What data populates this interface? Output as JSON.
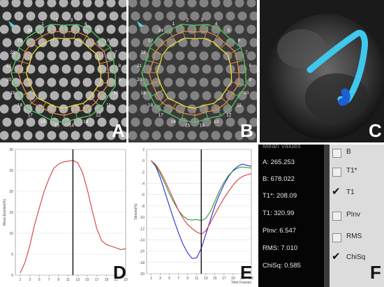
{
  "panels": {
    "A": "A",
    "B": "B",
    "C": "C",
    "D": "D",
    "E": "E",
    "F": "F"
  },
  "segments": [
    "1",
    "2",
    "3",
    "4",
    "5",
    "6",
    "7",
    "8",
    "9",
    "10",
    "11",
    "12",
    "13",
    "14",
    "15",
    "16",
    "17",
    "18",
    "19",
    "20",
    "21",
    "22",
    "23",
    "24"
  ],
  "colors": {
    "ring_outer": "#5ec35e",
    "ring_mid": "#e08a4a",
    "ring_inner": "#f2e23a",
    "marker": "#5ad1e8",
    "strain_blue": "#2b2bd6",
    "strain_green": "#2e9a2e",
    "strain_red": "#d43c3c",
    "mean_line": "#d43c3c"
  },
  "chart_data": [
    {
      "type": "line",
      "ylabel": "Mean Epsilon(%)",
      "xlim": [
        0,
        23
      ],
      "ylim": [
        0,
        30
      ],
      "y_ticks": [
        "0",
        "5",
        "10",
        "15",
        "20",
        "25",
        "30"
      ],
      "x_ticks": [
        "1",
        "3",
        "5",
        "7",
        "9",
        "11",
        "13",
        "15",
        "17",
        "19",
        "21",
        "23"
      ],
      "marker_x": 12,
      "series": [
        {
          "values": [
            [
              1,
              0.5
            ],
            [
              2,
              3
            ],
            [
              3,
              7
            ],
            [
              4,
              12
            ],
            [
              5,
              16
            ],
            [
              6,
              20
            ],
            [
              7,
              23
            ],
            [
              8,
              25.5
            ],
            [
              9,
              26.5
            ],
            [
              10,
              27
            ],
            [
              11,
              27.2
            ],
            [
              12,
              27.4
            ],
            [
              13,
              26.8
            ],
            [
              14,
              24.5
            ],
            [
              15,
              20.5
            ],
            [
              16,
              15.5
            ],
            [
              17,
              11
            ],
            [
              18,
              8.2
            ],
            [
              19,
              7.3
            ],
            [
              20,
              6.9
            ],
            [
              21,
              6.5
            ],
            [
              22,
              6.1
            ],
            [
              23,
              6.3
            ]
          ]
        }
      ]
    },
    {
      "type": "line",
      "ylabel": "Strains(%)",
      "xlabel": "Time Frames",
      "xlim": [
        0,
        23
      ],
      "ylim": [
        -20,
        2
      ],
      "y_ticks": [
        "2",
        "0",
        "-2",
        "-4",
        "-6",
        "-8",
        "-10",
        "-12",
        "-14",
        "-16",
        "-18",
        "-20"
      ],
      "x_ticks": [
        "1",
        "3",
        "5",
        "7",
        "9",
        "11",
        "13",
        "15",
        "17",
        "19",
        "21",
        "23"
      ],
      "marker_x": 12,
      "series": [
        {
          "values": [
            [
              1,
              0
            ],
            [
              2,
              -1
            ],
            [
              3,
              -3
            ],
            [
              4,
              -5.5
            ],
            [
              5,
              -8
            ],
            [
              6,
              -10.5
            ],
            [
              7,
              -12.8
            ],
            [
              8,
              -14.8
            ],
            [
              9,
              -16.3
            ],
            [
              10,
              -17.3
            ],
            [
              11,
              -17.2
            ],
            [
              12,
              -15.5
            ],
            [
              13,
              -13
            ],
            [
              14,
              -10.5
            ],
            [
              15,
              -8
            ],
            [
              16,
              -6
            ],
            [
              17,
              -4.2
            ],
            [
              18,
              -2.8
            ],
            [
              19,
              -1.7
            ],
            [
              20,
              -1
            ],
            [
              21,
              -0.6
            ],
            [
              22,
              -0.8
            ],
            [
              23,
              -1
            ]
          ]
        },
        {
          "values": [
            [
              1,
              0
            ],
            [
              2,
              -0.8
            ],
            [
              3,
              -2.3
            ],
            [
              4,
              -4
            ],
            [
              5,
              -5.8
            ],
            [
              6,
              -7.4
            ],
            [
              7,
              -8.8
            ],
            [
              8,
              -9.8
            ],
            [
              9,
              -10.4
            ],
            [
              10,
              -10.5
            ],
            [
              11,
              -10.4
            ],
            [
              12,
              -10.6
            ],
            [
              13,
              -10.2
            ],
            [
              14,
              -9
            ],
            [
              15,
              -7.2
            ],
            [
              16,
              -5.3
            ],
            [
              17,
              -3.8
            ],
            [
              18,
              -2.6
            ],
            [
              19,
              -1.8
            ],
            [
              20,
              -1.3
            ],
            [
              21,
              -1.1
            ],
            [
              22,
              -1.2
            ],
            [
              23,
              -1.3
            ]
          ]
        },
        {
          "values": [
            [
              1,
              0
            ],
            [
              2,
              -0.7
            ],
            [
              3,
              -1.9
            ],
            [
              4,
              -3.5
            ],
            [
              5,
              -5.2
            ],
            [
              6,
              -7
            ],
            [
              7,
              -8.8
            ],
            [
              8,
              -10.2
            ],
            [
              9,
              -11.3
            ],
            [
              10,
              -12
            ],
            [
              11,
              -12.6
            ],
            [
              12,
              -13
            ],
            [
              13,
              -12.4
            ],
            [
              14,
              -11
            ],
            [
              15,
              -9.5
            ],
            [
              16,
              -8
            ],
            [
              17,
              -6.6
            ],
            [
              18,
              -5.4
            ],
            [
              19,
              -4.3
            ],
            [
              20,
              -3.4
            ],
            [
              21,
              -2.8
            ],
            [
              22,
              -2.5
            ],
            [
              23,
              -2.3
            ]
          ]
        }
      ]
    }
  ],
  "values_panel": {
    "title": "Mean Values",
    "rows": [
      "A: 265.253",
      "B: 678.022",
      "T1*: 208.09",
      "T1: 320.99",
      "PInv: 6.547",
      "RMS: 7.010",
      "ChiSq: 0.585"
    ]
  },
  "checkboxes": [
    {
      "label": "B",
      "checked": false
    },
    {
      "label": "T1*",
      "checked": false
    },
    {
      "label": "T1",
      "checked": true
    },
    {
      "label": "PInv",
      "checked": false
    },
    {
      "label": "RMS",
      "checked": false
    },
    {
      "label": "ChiSq",
      "checked": true
    }
  ]
}
